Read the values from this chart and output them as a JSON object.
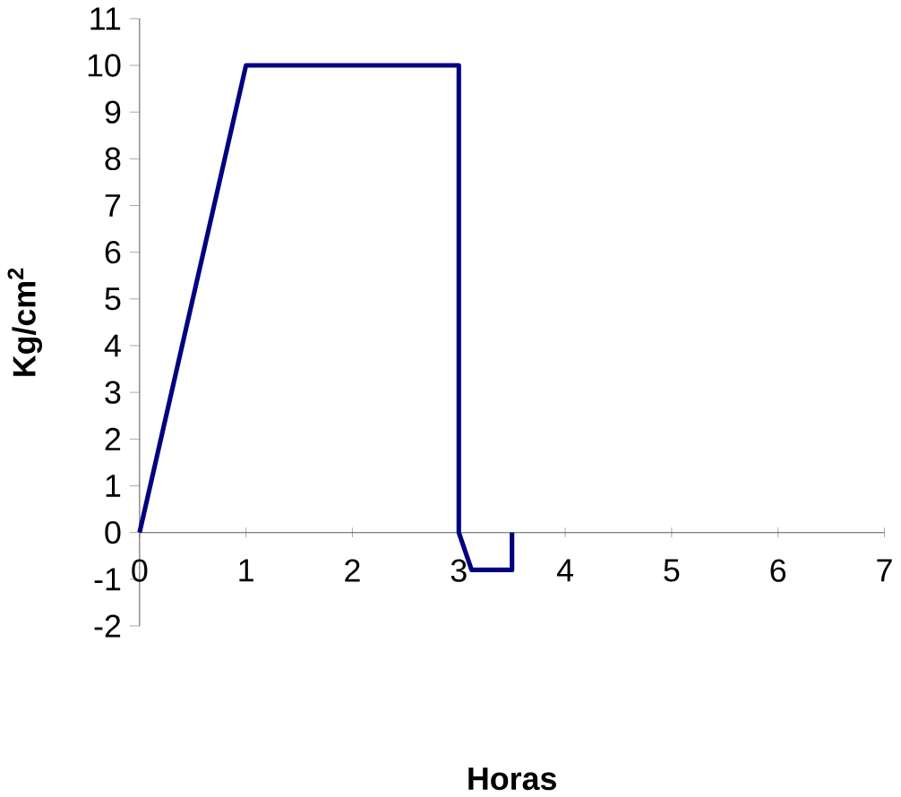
{
  "chart_data": {
    "type": "line",
    "xlabel": "Horas",
    "ylabel": "Kg/cm$^{2}$",
    "x": [
      0,
      1,
      3,
      3,
      3.12,
      3.5,
      3.5
    ],
    "series": [
      {
        "color": "#000080",
        "values": [
          0,
          10,
          10,
          0,
          -0.8,
          -0.8,
          0
        ]
      }
    ],
    "xlim": [
      0,
      7
    ],
    "xticks": [
      0,
      1,
      2,
      3,
      4,
      5,
      6,
      7
    ],
    "ylim": [
      -2,
      11
    ],
    "yticks": [
      -2,
      -1,
      0,
      1,
      2,
      3,
      4,
      5,
      6,
      7,
      8,
      9,
      10,
      11
    ],
    "grid": false,
    "marker": "none",
    "line_style": "solid"
  }
}
